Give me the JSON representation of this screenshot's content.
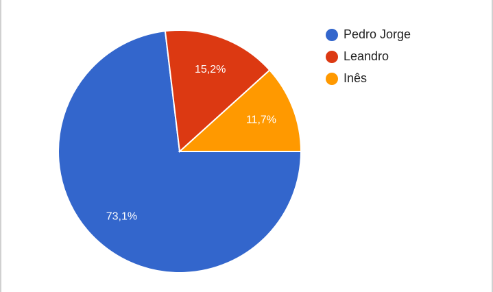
{
  "chart_data": {
    "type": "pie",
    "categories": [
      "Pedro Jorge",
      "Leandro",
      "Inês"
    ],
    "values": [
      73.1,
      15.2,
      11.7
    ],
    "value_labels": [
      "73,1%",
      "15,2%",
      "11,7%"
    ],
    "colors": [
      "#3366cc",
      "#dc3912",
      "#ff9900"
    ]
  }
}
